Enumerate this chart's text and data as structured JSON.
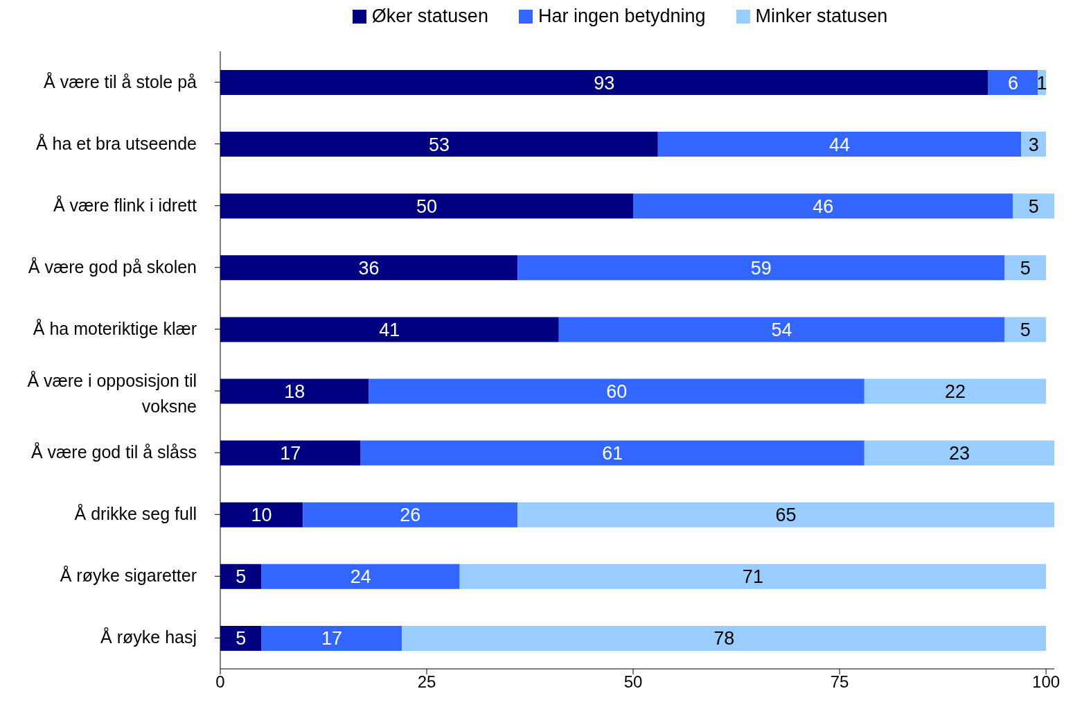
{
  "chart_data": {
    "type": "bar",
    "orientation": "horizontal",
    "stacked": true,
    "data_labels": true,
    "legend": "top",
    "grid": false,
    "categories": [
      "Å være til å stole på",
      "Å ha et bra utseende",
      "Å være flink i idrett",
      "Å være god på skolen",
      "Å ha moteriktige klær",
      "Å være i opposisjon til voksne",
      "Å være god til å slåss",
      "Å drikke seg full",
      "Å røyke sigaretter",
      "Å røyke hasj"
    ],
    "series": [
      {
        "name": "Øker statusen",
        "color": "#000080",
        "values": [
          93,
          53,
          50,
          36,
          41,
          18,
          17,
          10,
          5,
          5
        ]
      },
      {
        "name": "Har ingen betydning",
        "color": "#3366ff",
        "values": [
          6,
          44,
          46,
          59,
          54,
          60,
          61,
          26,
          24,
          17
        ]
      },
      {
        "name": "Minker statusen",
        "color": "#99ccff",
        "values": [
          1,
          3,
          5,
          5,
          5,
          22,
          23,
          65,
          71,
          78
        ]
      }
    ],
    "xlim": [
      0,
      101
    ],
    "xticks": [
      0,
      25,
      50,
      75,
      100
    ]
  }
}
